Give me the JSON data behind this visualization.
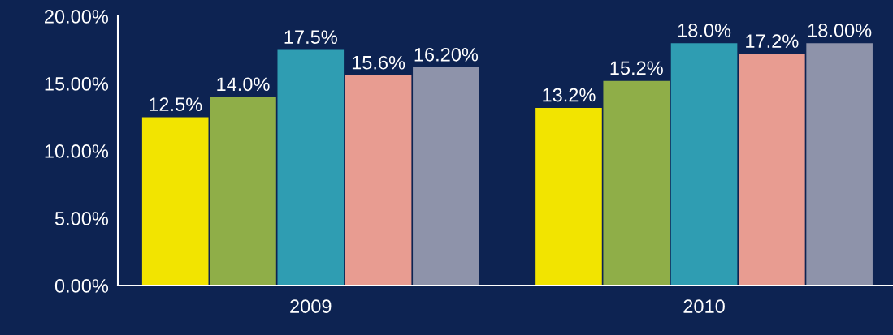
{
  "chart_data": {
    "type": "bar",
    "categories": [
      "2009",
      "2010"
    ],
    "series": [
      {
        "color": "#f2e400",
        "values": [
          12.5,
          13.2
        ],
        "value_labels": [
          "12.5%",
          "13.2%"
        ]
      },
      {
        "color": "#8fae48",
        "values": [
          14.0,
          15.2
        ],
        "value_labels": [
          "14.0%",
          "15.2%"
        ]
      },
      {
        "color": "#2f9db2",
        "values": [
          17.5,
          18.0
        ],
        "value_labels": [
          "17.5%",
          "18.0%"
        ]
      },
      {
        "color": "#e89c91",
        "values": [
          15.6,
          17.2
        ],
        "value_labels": [
          "15.6%",
          "17.2%"
        ]
      },
      {
        "color": "#8e93aa",
        "values": [
          16.2,
          18.0
        ],
        "value_labels": [
          "16.20%",
          "18.00%"
        ]
      }
    ],
    "ylim": [
      0,
      20
    ],
    "yticks": [
      {
        "value": 0,
        "label": "0.00%"
      },
      {
        "value": 5,
        "label": "5.00%"
      },
      {
        "value": 10,
        "label": "10.00%"
      },
      {
        "value": 15,
        "label": "15.00%"
      },
      {
        "value": 20,
        "label": "20.00%"
      }
    ],
    "grid": false,
    "legend": false
  }
}
